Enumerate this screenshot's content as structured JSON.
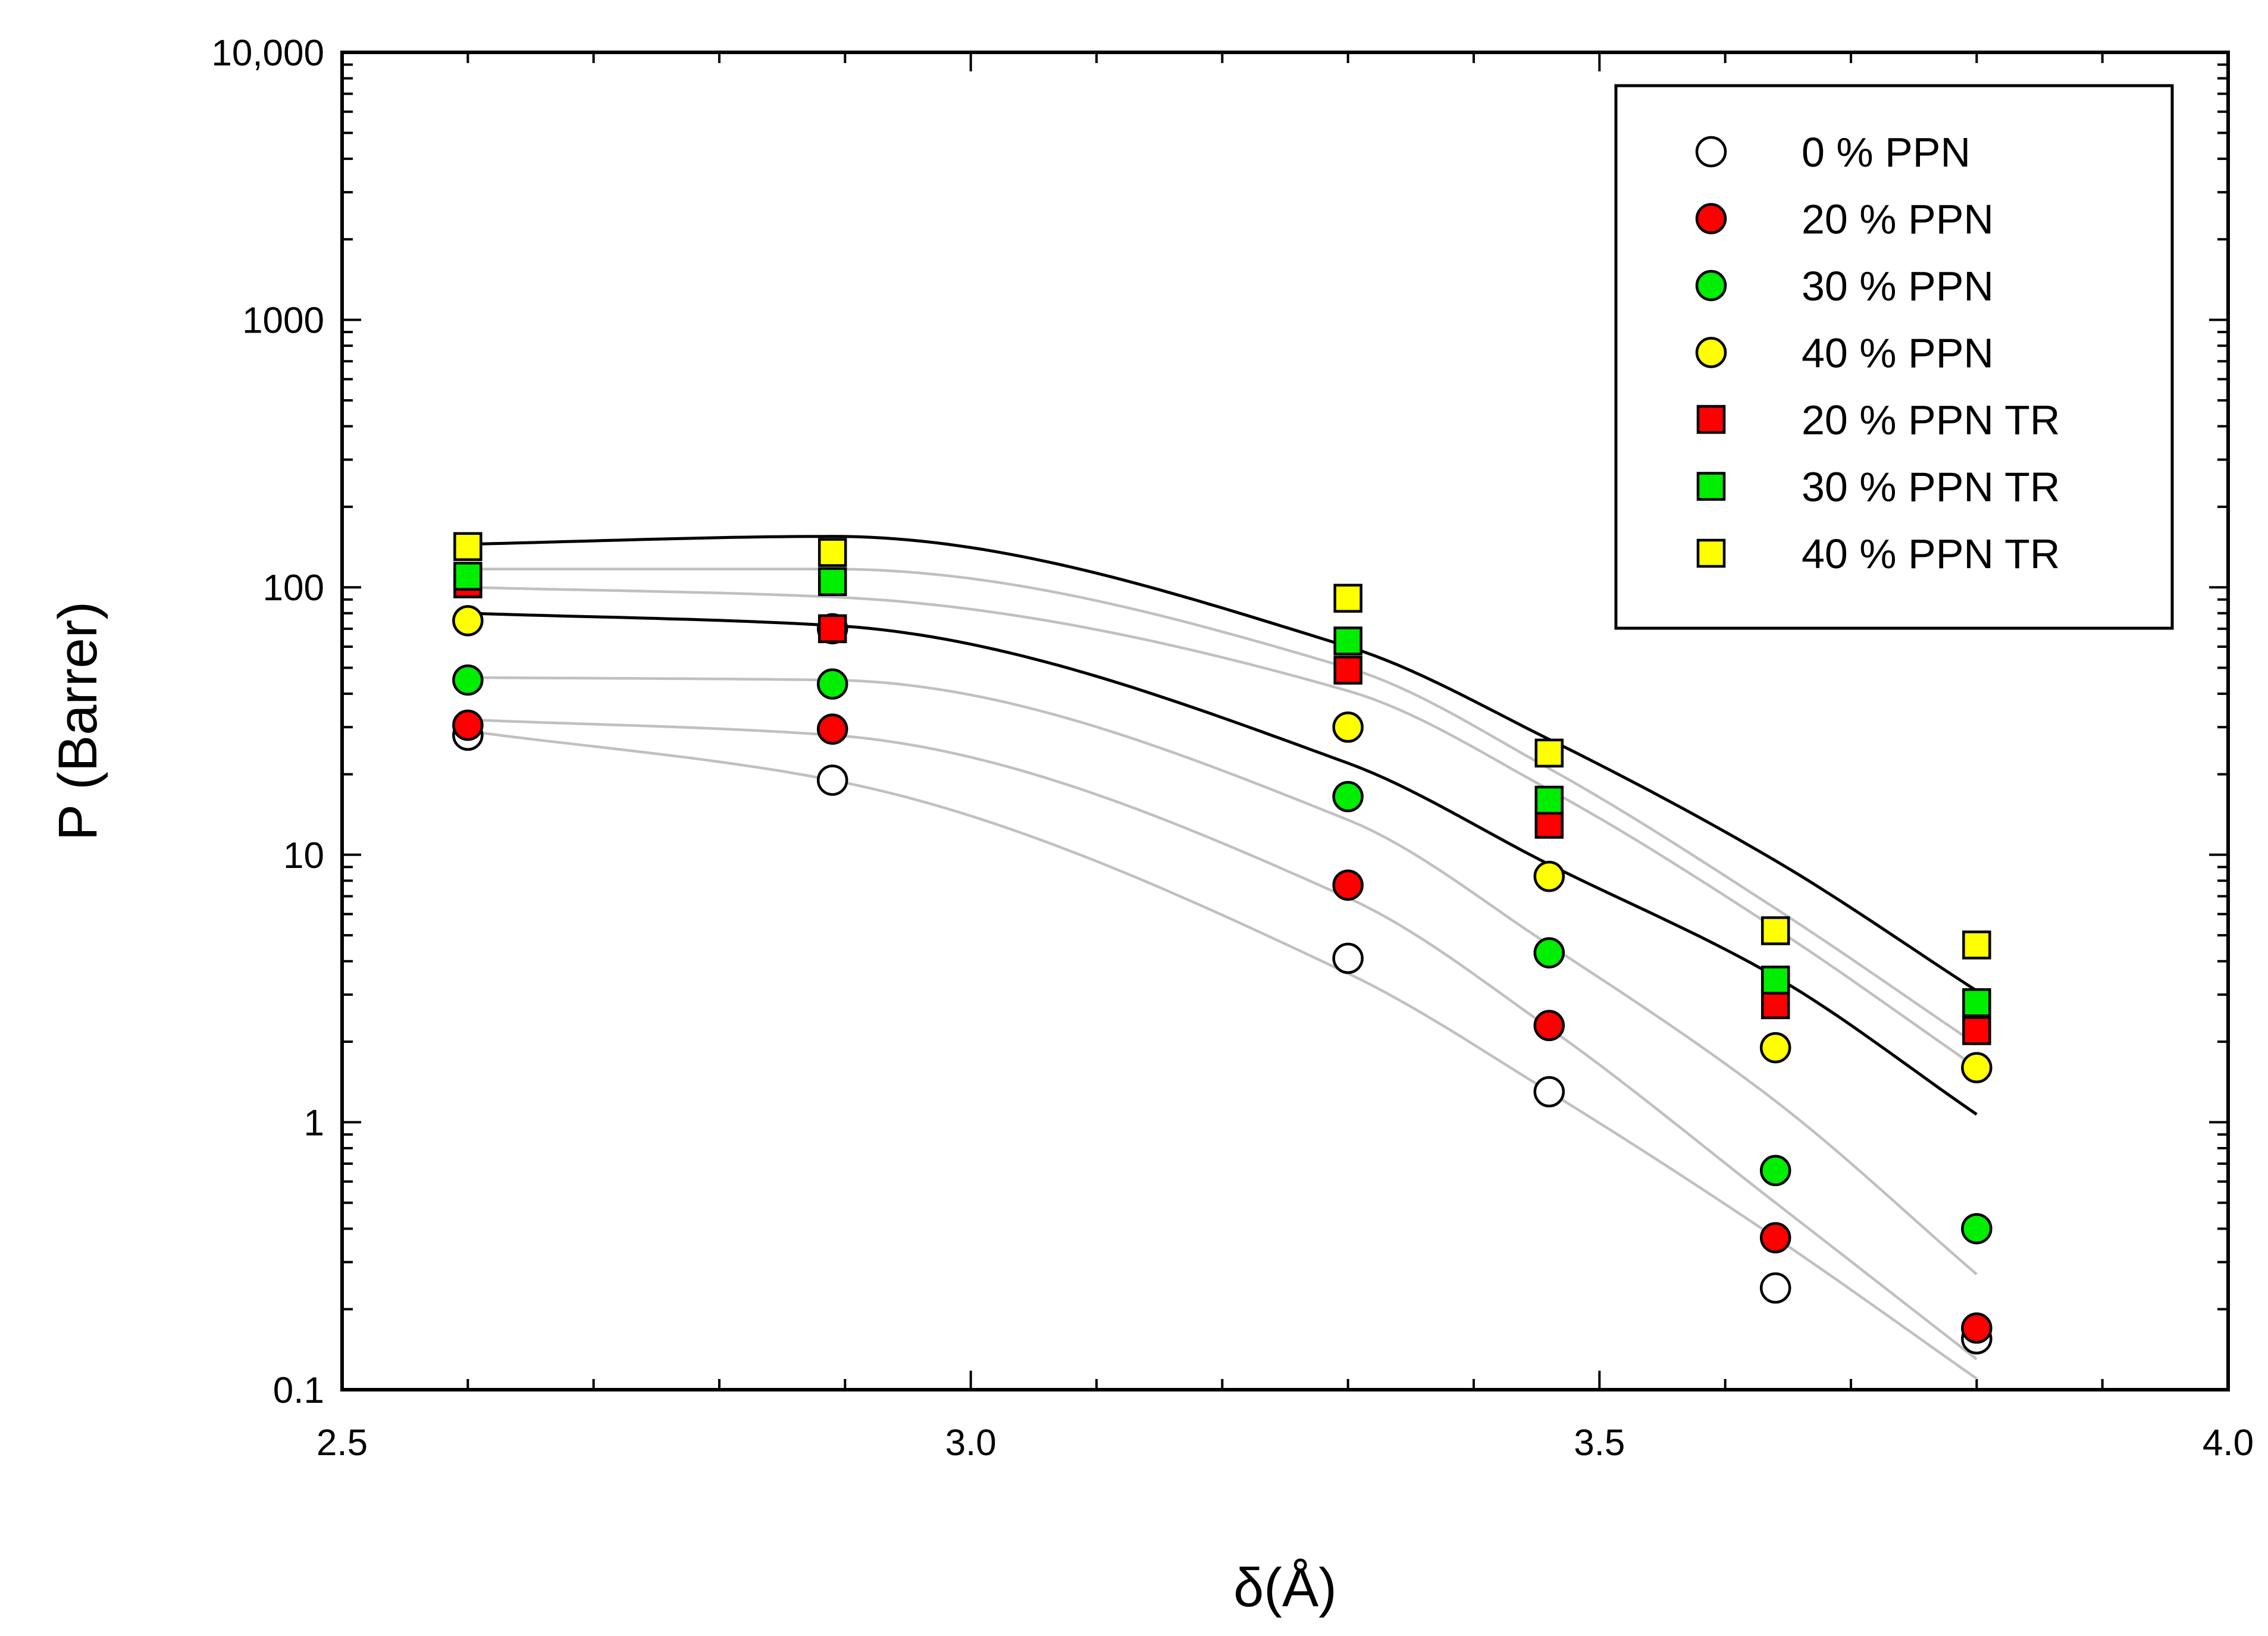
{
  "chart_data": {
    "type": "scatter",
    "title": "",
    "xlabel": "δ(Å)",
    "ylabel": "P (Barrer)",
    "xlim": [
      2.5,
      4.0
    ],
    "ylim": [
      0.1,
      10000
    ],
    "yscale": "log",
    "x_ticks": [
      2.5,
      3.0,
      3.5,
      4.0
    ],
    "x_tick_labels": [
      "2.5",
      "3.0",
      "3.5",
      "4.0"
    ],
    "y_ticks": [
      0.1,
      1,
      10,
      100,
      1000,
      10000
    ],
    "y_tick_labels": [
      "0.1",
      "1",
      "10",
      "100",
      "1000",
      "10,000"
    ],
    "legend_position": "top-right",
    "x": [
      2.6,
      2.89,
      3.3,
      3.46,
      3.64,
      3.8
    ],
    "series": [
      {
        "name": "0 % PPN",
        "marker": "circle",
        "color": "#ffffff",
        "values": [
          28,
          19,
          4.1,
          1.3,
          0.24,
          0.155
        ]
      },
      {
        "name": "20 % PPN",
        "marker": "circle",
        "color": "#ff0000",
        "values": [
          30.5,
          29.5,
          7.7,
          2.3,
          0.37,
          0.17
        ]
      },
      {
        "name": "30 % PPN",
        "marker": "circle",
        "color": "#00ee00",
        "values": [
          45,
          43.5,
          16.5,
          4.3,
          0.66,
          0.4
        ]
      },
      {
        "name": "40 % PPN",
        "marker": "circle",
        "color": "#ffff00",
        "values": [
          75,
          70,
          30,
          8.3,
          1.9,
          1.6
        ]
      },
      {
        "name": "20 % PPN TR",
        "marker": "square",
        "color": "#ff0000",
        "values": [
          103,
          70,
          49,
          13,
          2.75,
          2.2
        ]
      },
      {
        "name": "30 % PPN TR",
        "marker": "square",
        "color": "#00ee00",
        "values": [
          110,
          105,
          63,
          16,
          3.4,
          2.8
        ]
      },
      {
        "name": "40 % PPN TR",
        "marker": "square",
        "color": "#ffff00",
        "values": [
          142,
          135,
          91,
          24,
          5.2,
          4.6
        ]
      }
    ],
    "fit_curves": [
      {
        "style": "black",
        "x": [
          2.6,
          2.89,
          3.3,
          3.46,
          3.64,
          3.8
        ],
        "values": [
          145,
          155,
          60,
          27,
          9.5,
          3.1
        ]
      },
      {
        "style": "black",
        "x": [
          2.6,
          2.89,
          3.3,
          3.46,
          3.64,
          3.8
        ],
        "values": [
          80,
          72,
          22,
          9.2,
          3.5,
          1.07
        ]
      },
      {
        "style": "gray",
        "x": [
          2.6,
          2.89,
          3.3,
          3.46,
          3.64,
          3.8
        ],
        "values": [
          117,
          117,
          50,
          21,
          6.3,
          1.95
        ]
      },
      {
        "style": "gray",
        "x": [
          2.6,
          2.89,
          3.3,
          3.46,
          3.64,
          3.8
        ],
        "values": [
          100,
          92,
          41,
          17.5,
          5.3,
          1.6
        ]
      },
      {
        "style": "gray",
        "x": [
          2.6,
          2.89,
          3.3,
          3.46,
          3.64,
          3.8
        ],
        "values": [
          46,
          45,
          13.5,
          4.6,
          1.2,
          0.27
        ]
      },
      {
        "style": "gray",
        "x": [
          2.6,
          2.89,
          3.3,
          3.46,
          3.64,
          3.8
        ],
        "values": [
          32,
          28,
          6.9,
          2.25,
          0.5,
          0.13
        ]
      },
      {
        "style": "gray",
        "x": [
          2.6,
          2.89,
          3.3,
          3.46,
          3.64,
          3.8
        ],
        "values": [
          29,
          19,
          3.6,
          1.3,
          0.37,
          0.11
        ]
      }
    ]
  }
}
